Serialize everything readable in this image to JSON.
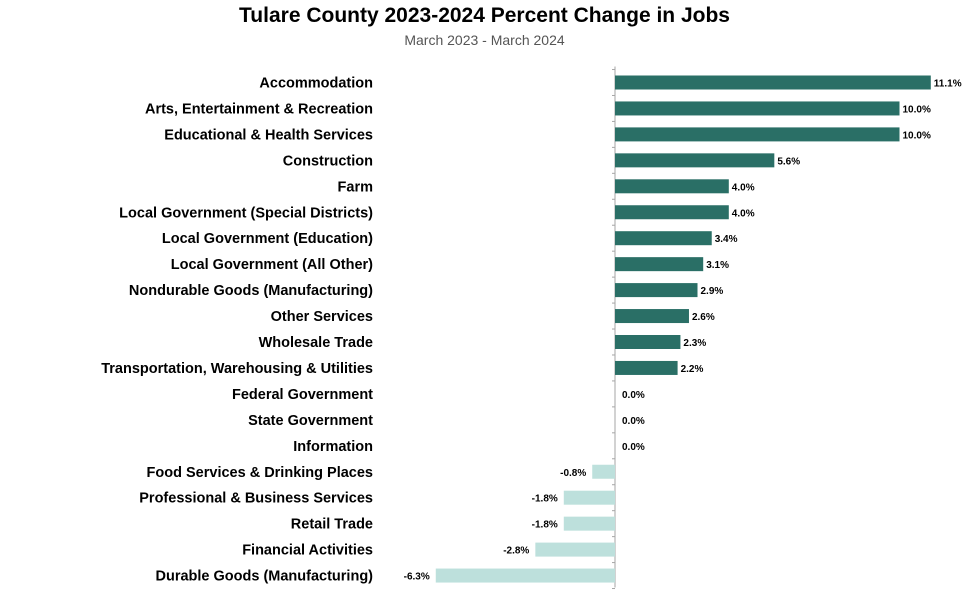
{
  "chart_data": {
    "type": "bar",
    "orientation": "horizontal",
    "title": "Tulare County 2023-2024 Percent Change in Jobs",
    "subtitle": "March 2023 - March 2024",
    "categories": [
      "Accommodation",
      "Arts, Entertainment & Recreation",
      "Educational & Health Services",
      "Construction",
      "Farm",
      "Local Government (Special Districts)",
      "Local Government (Education)",
      "Local Government (All Other)",
      "Nondurable Goods (Manufacturing)",
      "Other Services",
      "Wholesale Trade",
      "Transportation, Warehousing & Utilities",
      "Federal Government",
      "State Government",
      "Information",
      "Food Services & Drinking Places",
      "Professional & Business Services",
      "Retail Trade",
      "Financial Activities",
      "Durable Goods (Manufacturing)"
    ],
    "values": [
      11.1,
      10.0,
      10.0,
      5.6,
      4.0,
      4.0,
      3.4,
      3.1,
      2.9,
      2.6,
      2.3,
      2.2,
      0.0,
      0.0,
      0.0,
      -0.8,
      -1.8,
      -1.8,
      -2.8,
      -6.3
    ],
    "data_labels": [
      "11.1%",
      "10.0%",
      "10.0%",
      "5.6%",
      "4.0%",
      "4.0%",
      "3.4%",
      "3.1%",
      "2.9%",
      "2.6%",
      "2.3%",
      "2.2%",
      "0.0%",
      "0.0%",
      "0.0%",
      "-0.8%",
      "-1.8%",
      "-1.8%",
      "-2.8%",
      "-6.3%"
    ],
    "xlim": [
      -6.3,
      11.1
    ],
    "grid": false,
    "legend": "none",
    "colors": {
      "positive": "#2a6f66",
      "negative": "#bde0dc",
      "axis": "#a6a6a6"
    }
  }
}
